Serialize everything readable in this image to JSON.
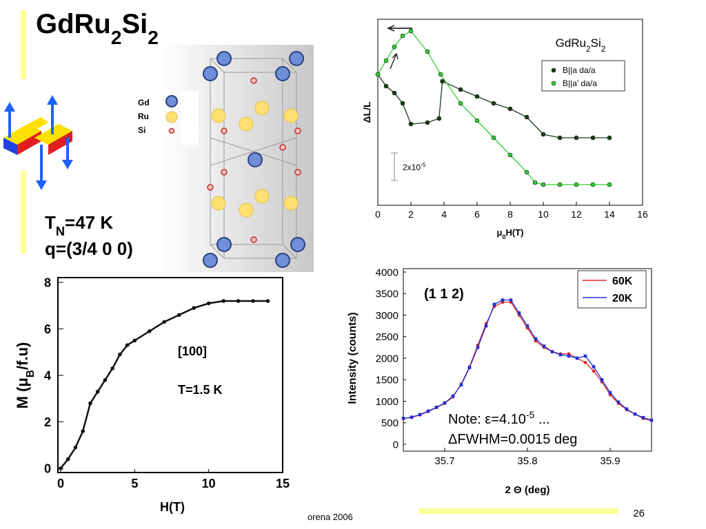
{
  "title": [
    "GdRu",
    "2",
    "Si",
    "2"
  ],
  "params": {
    "tn": [
      "T",
      "N",
      "=47 K"
    ],
    "q": "q=(3/4 0 0)"
  },
  "structure_legend": [
    "Gd",
    "Ru",
    "Si"
  ],
  "footer": {
    "source": "orena 2006",
    "page": "26"
  },
  "chart_data": [
    {
      "type": "line",
      "title": [
        "GdRu",
        "2",
        "Si",
        "2"
      ],
      "xlabel": [
        "μ",
        "0",
        "H(T)"
      ],
      "ylabel": "ΔL/L",
      "xlim": [
        0,
        16
      ],
      "xticks": [
        0,
        2,
        4,
        6,
        8,
        10,
        12,
        14,
        16
      ],
      "ylim": [
        0,
        0.000135
      ],
      "scalebar": {
        "value": 2e-05,
        "label": [
          "2x10",
          "-5"
        ]
      },
      "legend": "upper right",
      "series": [
        {
          "name": "B||a da/a",
          "color": "#1e3a1e",
          "x": [
            0,
            0.5,
            1,
            1.5,
            2,
            3,
            3.7,
            3.9,
            5,
            6,
            7,
            8,
            9,
            10,
            11,
            12,
            13,
            14
          ],
          "values": [
            9.5e-05,
            8.65e-05,
            8.15e-05,
            7.4e-05,
            5.9e-05,
            6e-05,
            6.3e-05,
            9e-05,
            8.4e-05,
            7.9e-05,
            7.4e-05,
            7e-05,
            6.4e-05,
            5.15e-05,
            4.9e-05,
            4.9e-05,
            4.9e-05,
            4.9e-05
          ]
        },
        {
          "name": "B||a' da/a",
          "color": "#33cc33",
          "x": [
            0,
            0.5,
            1,
            1.5,
            2,
            3,
            3.8,
            5,
            6,
            7,
            8,
            9,
            9.5,
            10,
            11,
            12,
            13,
            14
          ],
          "values": [
            9.5e-05,
            0.000105,
            0.000115,
            0.000123,
            0.0001265,
            0.0001115,
            9.5e-05,
            7.4e-05,
            6.15e-05,
            4.9e-05,
            3.65e-05,
            2.4e-05,
            1.65e-05,
            1.5e-05,
            1.5e-05,
            1.5e-05,
            1.5e-05,
            1.5e-05
          ]
        }
      ]
    },
    {
      "type": "line",
      "xlabel": "H(T)",
      "ylabel": [
        "M (μ",
        "B",
        "/f.u)"
      ],
      "xlim": [
        0,
        15
      ],
      "xticks": [
        0,
        5,
        10,
        15
      ],
      "ylim": [
        0,
        8
      ],
      "yticks": [
        0,
        2,
        4,
        6,
        8
      ],
      "annotations": [
        "[100]",
        "T=1.5 K"
      ],
      "series": [
        {
          "color": "#111111",
          "x": [
            0,
            0.5,
            1,
            1.5,
            2,
            2.5,
            3,
            3.5,
            4,
            4.5,
            5,
            6,
            7,
            8,
            9,
            10,
            11,
            12,
            13,
            14
          ],
          "values": [
            0,
            0.4,
            0.9,
            1.6,
            2.8,
            3.3,
            3.8,
            4.3,
            4.9,
            5.3,
            5.5,
            5.9,
            6.3,
            6.6,
            6.9,
            7.1,
            7.2,
            7.2,
            7.2,
            7.2
          ]
        }
      ]
    },
    {
      "type": "line",
      "xlabel": "2 Θ  (deg)",
      "ylabel": "Intensity (counts)",
      "xlim": [
        35.65,
        35.95
      ],
      "xticks": [
        35.7,
        35.8,
        35.9
      ],
      "ylim": [
        0,
        4000
      ],
      "yticks": [
        0,
        500,
        1000,
        1500,
        2000,
        2500,
        3000,
        3500,
        4000
      ],
      "annotations": [
        "(1 1 2)"
      ],
      "note": [
        [
          "Note: ε=4.10",
          "-5",
          " ..."
        ],
        "ΔFWHM=0.0015 deg"
      ],
      "legend": "upper right",
      "x": [
        35.65,
        35.66,
        35.67,
        35.68,
        35.69,
        35.7,
        35.71,
        35.72,
        35.73,
        35.74,
        35.75,
        35.76,
        35.77,
        35.78,
        35.79,
        35.8,
        35.81,
        35.82,
        35.83,
        35.84,
        35.85,
        35.86,
        35.87,
        35.88,
        35.89,
        35.9,
        35.91,
        35.92,
        35.93,
        35.94,
        35.95
      ],
      "series": [
        {
          "name": "60K",
          "color": "#e02020",
          "values": [
            600,
            620,
            680,
            760,
            850,
            950,
            1100,
            1400,
            1800,
            2300,
            2800,
            3200,
            3300,
            3300,
            3000,
            2700,
            2400,
            2250,
            2150,
            2100,
            2100,
            2000,
            1900,
            1700,
            1450,
            1150,
            950,
            800,
            700,
            600,
            550
          ]
        },
        {
          "name": "20K",
          "color": "#2030d0",
          "values": [
            600,
            630,
            690,
            770,
            860,
            960,
            1120,
            1380,
            1780,
            2250,
            2750,
            3250,
            3350,
            3350,
            3050,
            2750,
            2450,
            2280,
            2150,
            2080,
            2050,
            2000,
            2050,
            1800,
            1500,
            1200,
            980,
            820,
            700,
            620,
            560
          ]
        }
      ]
    }
  ]
}
